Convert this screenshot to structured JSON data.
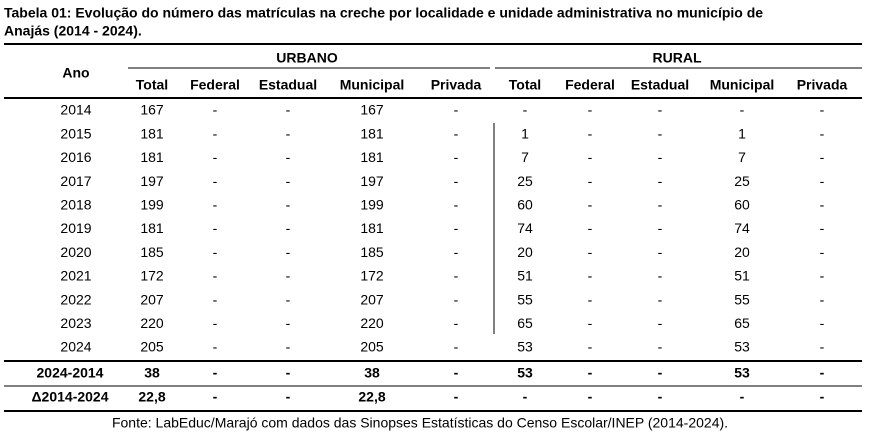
{
  "title": "Tabela 01: Evolução do número das matrículas na creche por localidade e unidade administrativa no município de Anajás (2014 - 2024).",
  "table": {
    "header": {
      "year": "Ano",
      "groups": [
        "URBANO",
        "RURAL"
      ],
      "columns": [
        "Total",
        "Federal",
        "Estadual",
        "Municipal",
        "Privada",
        "Total",
        "Federal",
        "Estadual",
        "Municipal",
        "Privada"
      ]
    },
    "rows": [
      [
        "2014",
        "167",
        "-",
        "-",
        "167",
        "-",
        "-",
        "-",
        "-",
        "-",
        "-"
      ],
      [
        "2015",
        "181",
        "-",
        "-",
        "181",
        "-",
        "1",
        "-",
        "-",
        "1",
        "-"
      ],
      [
        "2016",
        "181",
        "-",
        "-",
        "181",
        "-",
        "7",
        "-",
        "-",
        "7",
        "-"
      ],
      [
        "2017",
        "197",
        "-",
        "-",
        "197",
        "-",
        "25",
        "-",
        "-",
        "25",
        "-"
      ],
      [
        "2018",
        "199",
        "-",
        "-",
        "199",
        "-",
        "60",
        "-",
        "-",
        "60",
        "-"
      ],
      [
        "2019",
        "181",
        "-",
        "-",
        "181",
        "-",
        "74",
        "-",
        "-",
        "74",
        "-"
      ],
      [
        "2020",
        "185",
        "-",
        "-",
        "185",
        "-",
        "20",
        "-",
        "-",
        "20",
        "-"
      ],
      [
        "2021",
        "172",
        "-",
        "-",
        "172",
        "-",
        "51",
        "-",
        "-",
        "51",
        "-"
      ],
      [
        "2022",
        "207",
        "-",
        "-",
        "207",
        "-",
        "55",
        "-",
        "-",
        "55",
        "-"
      ],
      [
        "2023",
        "220",
        "-",
        "-",
        "220",
        "-",
        "65",
        "-",
        "-",
        "65",
        "-"
      ],
      [
        "2024",
        "205",
        "-",
        "-",
        "205",
        "-",
        "53",
        "-",
        "-",
        "53",
        "-"
      ]
    ],
    "summary": [
      [
        "2024-2014",
        "38",
        "-",
        "-",
        "38",
        "-",
        "53",
        "-",
        "-",
        "53",
        "-"
      ],
      [
        "Δ2014-2024",
        "22,8",
        "-",
        "-",
        "22,8",
        "-",
        "-",
        "-",
        "-",
        "-",
        "-"
      ]
    ]
  },
  "source": "Fonte: LabEduc/Marajó com dados das Sinopses Estatísticas do Censo Escolar/INEP (2014-2024)."
}
